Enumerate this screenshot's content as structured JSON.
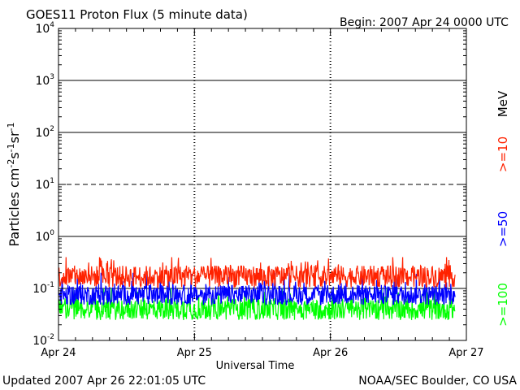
{
  "header": {
    "title": "GOES11 Proton Flux (5 minute data)",
    "begin": "Begin: 2007 Apr 24 0000 UTC"
  },
  "footer": {
    "updated": "Updated 2007 Apr 26 22:01:05 UTC",
    "credit": "NOAA/SEC Boulder, CO USA"
  },
  "chart_data": {
    "type": "line",
    "title": "GOES11 Proton Flux (5 minute data)",
    "xlabel": "Universal Time",
    "ylabel": "Particles cm-2 s-1 sr-1",
    "yscale": "log",
    "ylim": [
      0.01,
      10000
    ],
    "x_ticks": [
      "Apr 24",
      "Apr 25",
      "Apr 26",
      "Apr 27"
    ],
    "x_range": [
      "2007-04-24 00:00 UTC",
      "2007-04-27 00:00 UTC"
    ],
    "data_end": "2007-04-26 22:00 UTC",
    "y_ticks": [
      {
        "base": "10",
        "exp": "-2"
      },
      {
        "base": "10",
        "exp": "-1"
      },
      {
        "base": "10",
        "exp": "0"
      },
      {
        "base": "10",
        "exp": "1"
      },
      {
        "base": "10",
        "exp": "2"
      },
      {
        "base": "10",
        "exp": "3"
      },
      {
        "base": "10",
        "exp": "4"
      }
    ],
    "threshold_lines": [
      {
        "value": 0.1,
        "style": "solid"
      },
      {
        "value": 1,
        "style": "solid"
      },
      {
        "value": 10,
        "style": "dashed"
      },
      {
        "value": 100,
        "style": "solid"
      },
      {
        "value": 1000,
        "style": "solid"
      }
    ],
    "right_unit": "MeV",
    "series": [
      {
        "name": ">=10",
        "color": "#ff2200",
        "approx_mean": 0.17,
        "approx_range": [
          0.08,
          0.4
        ]
      },
      {
        "name": ">=50",
        "color": "#0000ff",
        "approx_mean": 0.075,
        "approx_range": [
          0.045,
          0.2
        ]
      },
      {
        "name": ">=100",
        "color": "#00ff00",
        "approx_mean": 0.04,
        "approx_range": [
          0.02,
          0.1
        ]
      }
    ]
  }
}
